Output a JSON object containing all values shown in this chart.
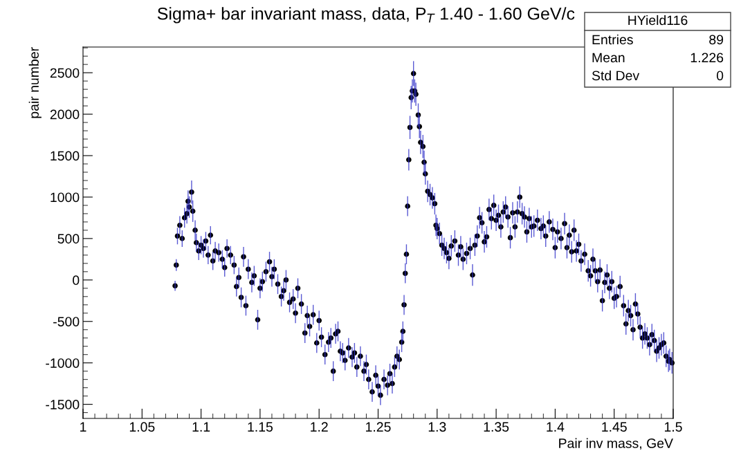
{
  "chart_data": {
    "type": "scatter",
    "title": "Sigma+ bar invariant mass, data, P$_{T}$ 1.40 - 1.60 GeV/c",
    "xlabel": "Pair inv mass, GeV",
    "ylabel": "pair number",
    "marker": "circle",
    "grid": false,
    "legend": false,
    "xlim": [
      1,
      1.5
    ],
    "xticks": [
      1,
      1.05,
      1.1,
      1.15,
      1.2,
      1.25,
      1.3,
      1.35,
      1.4,
      1.45,
      1.5
    ],
    "ylim": [
      -1670,
      2810
    ],
    "yticks": [
      -1500,
      -1000,
      -500,
      0,
      500,
      1000,
      1500,
      2000,
      2500
    ],
    "annotations": [
      "HYield116",
      "Entries",
      "89",
      "Mean",
      "1.226",
      "Std Dev",
      "0"
    ],
    "series": [
      {
        "color": "#000000",
        "x": [
          1.078,
          1.079,
          1.08,
          1.082,
          1.084,
          1.086,
          1.088,
          1.089,
          1.09,
          1.092,
          1.093,
          1.095,
          1.096,
          1.098,
          1.1,
          1.102,
          1.104,
          1.106,
          1.108,
          1.11,
          1.112,
          1.115,
          1.118,
          1.12,
          1.122,
          1.125,
          1.128,
          1.13,
          1.132,
          1.134,
          1.136,
          1.138,
          1.14,
          1.143,
          1.145,
          1.148,
          1.15,
          1.152,
          1.155,
          1.158,
          1.16,
          1.162,
          1.165,
          1.168,
          1.17,
          1.172,
          1.175,
          1.178,
          1.18,
          1.182,
          1.185,
          1.188,
          1.19,
          1.192,
          1.195,
          1.198,
          1.2,
          1.202,
          1.205,
          1.208,
          1.21,
          1.212,
          1.214,
          1.216,
          1.218,
          1.22,
          1.222,
          1.225,
          1.228,
          1.23,
          1.232,
          1.235,
          1.238,
          1.24,
          1.242,
          1.245,
          1.248,
          1.25,
          1.252,
          1.255,
          1.258,
          1.26,
          1.262,
          1.264,
          1.266,
          1.268,
          1.27,
          1.271,
          1.272,
          1.273,
          1.274,
          1.275,
          1.276,
          1.277,
          1.278,
          1.279,
          1.28,
          1.281,
          1.282,
          1.284,
          1.285,
          1.286,
          1.288,
          1.289,
          1.29,
          1.292,
          1.294,
          1.296,
          1.298,
          1.299,
          1.3,
          1.302,
          1.304,
          1.306,
          1.308,
          1.31,
          1.312,
          1.315,
          1.318,
          1.32,
          1.322,
          1.325,
          1.328,
          1.33,
          1.332,
          1.334,
          1.336,
          1.338,
          1.34,
          1.342,
          1.344,
          1.346,
          1.348,
          1.35,
          1.352,
          1.354,
          1.356,
          1.358,
          1.36,
          1.362,
          1.364,
          1.366,
          1.368,
          1.37,
          1.372,
          1.374,
          1.376,
          1.378,
          1.38,
          1.382,
          1.385,
          1.388,
          1.39,
          1.392,
          1.395,
          1.398,
          1.4,
          1.402,
          1.405,
          1.408,
          1.41,
          1.412,
          1.414,
          1.416,
          1.418,
          1.42,
          1.422,
          1.425,
          1.428,
          1.43,
          1.432,
          1.434,
          1.436,
          1.438,
          1.44,
          1.442,
          1.444,
          1.446,
          1.448,
          1.45,
          1.452,
          1.455,
          1.458,
          1.46,
          1.462,
          1.464,
          1.466,
          1.468,
          1.47,
          1.472,
          1.474,
          1.476,
          1.478,
          1.48,
          1.482,
          1.484,
          1.486,
          1.488,
          1.49,
          1.492,
          1.494,
          1.496,
          1.497,
          1.499
        ],
        "values": [
          -70,
          180,
          530,
          660,
          500,
          750,
          800,
          950,
          880,
          1060,
          830,
          600,
          450,
          350,
          420,
          380,
          470,
          300,
          540,
          230,
          350,
          330,
          250,
          150,
          380,
          300,
          180,
          -80,
          30,
          -210,
          280,
          -310,
          130,
          -30,
          50,
          -480,
          -100,
          -20,
          100,
          220,
          40,
          130,
          -50,
          -200,
          -130,
          0,
          -270,
          -230,
          -400,
          -100,
          -290,
          -640,
          -430,
          -560,
          -420,
          -760,
          -490,
          -690,
          -900,
          -750,
          -700,
          -1100,
          -650,
          -620,
          -860,
          -880,
          -970,
          -820,
          -930,
          -880,
          -1050,
          -920,
          -1100,
          -1020,
          -1200,
          -1350,
          -1150,
          -1280,
          -1390,
          -1200,
          -1270,
          -1130,
          -1250,
          -1050,
          -920,
          -960,
          -750,
          -620,
          -300,
          80,
          310,
          890,
          1450,
          1840,
          2200,
          2280,
          2490,
          2280,
          2240,
          1990,
          1850,
          1660,
          1610,
          1420,
          1280,
          1070,
          1030,
          990,
          920,
          660,
          620,
          560,
          420,
          380,
          330,
          260,
          410,
          470,
          300,
          400,
          250,
          320,
          380,
          60,
          420,
          530,
          750,
          690,
          460,
          520,
          850,
          740,
          900,
          720,
          780,
          640,
          820,
          880,
          760,
          510,
          810,
          640,
          820,
          1000,
          800,
          760,
          580,
          740,
          640,
          650,
          720,
          620,
          650,
          530,
          700,
          610,
          390,
          580,
          500,
          680,
          390,
          540,
          340,
          600,
          350,
          430,
          230,
          310,
          110,
          50,
          250,
          110,
          -20,
          120,
          -250,
          -30,
          60,
          -100,
          -20,
          -220,
          -200,
          -80,
          -310,
          -530,
          -370,
          -430,
          -600,
          -290,
          -410,
          -570,
          -700,
          -650,
          -700,
          -780,
          -660,
          -730,
          -860,
          -820,
          -780,
          -760,
          -920,
          -980,
          -960,
          -1000
        ],
        "errors": [
          60,
          70,
          100,
          110,
          100,
          120,
          120,
          130,
          130,
          140,
          130,
          120,
          110,
          110,
          110,
          110,
          110,
          110,
          110,
          110,
          110,
          110,
          110,
          110,
          110,
          110,
          110,
          120,
          120,
          120,
          120,
          120,
          120,
          120,
          120,
          120,
          120,
          120,
          120,
          120,
          120,
          120,
          120,
          120,
          120,
          120,
          120,
          120,
          120,
          120,
          120,
          120,
          120,
          120,
          120,
          120,
          120,
          120,
          120,
          120,
          120,
          120,
          120,
          120,
          120,
          120,
          120,
          120,
          120,
          120,
          120,
          120,
          120,
          120,
          120,
          120,
          120,
          120,
          120,
          120,
          120,
          120,
          120,
          120,
          120,
          120,
          120,
          120,
          120,
          120,
          120,
          120,
          130,
          140,
          140,
          140,
          150,
          140,
          140,
          140,
          140,
          140,
          140,
          140,
          130,
          130,
          130,
          130,
          130,
          130,
          130,
          130,
          130,
          130,
          130,
          130,
          130,
          130,
          130,
          130,
          130,
          130,
          130,
          130,
          130,
          130,
          130,
          130,
          130,
          130,
          130,
          130,
          130,
          130,
          130,
          130,
          130,
          130,
          130,
          130,
          130,
          130,
          130,
          130,
          130,
          130,
          130,
          130,
          130,
          130,
          130,
          130,
          130,
          130,
          130,
          130,
          130,
          130,
          130,
          130,
          130,
          130,
          130,
          130,
          130,
          130,
          130,
          130,
          130,
          130,
          130,
          130,
          130,
          130,
          130,
          130,
          130,
          130,
          130,
          130,
          130,
          130,
          130,
          130,
          130,
          130,
          130,
          130,
          130,
          130,
          130,
          130,
          130,
          130,
          130,
          130,
          130,
          130,
          130,
          130,
          130,
          130,
          130,
          130
        ]
      }
    ]
  }
}
